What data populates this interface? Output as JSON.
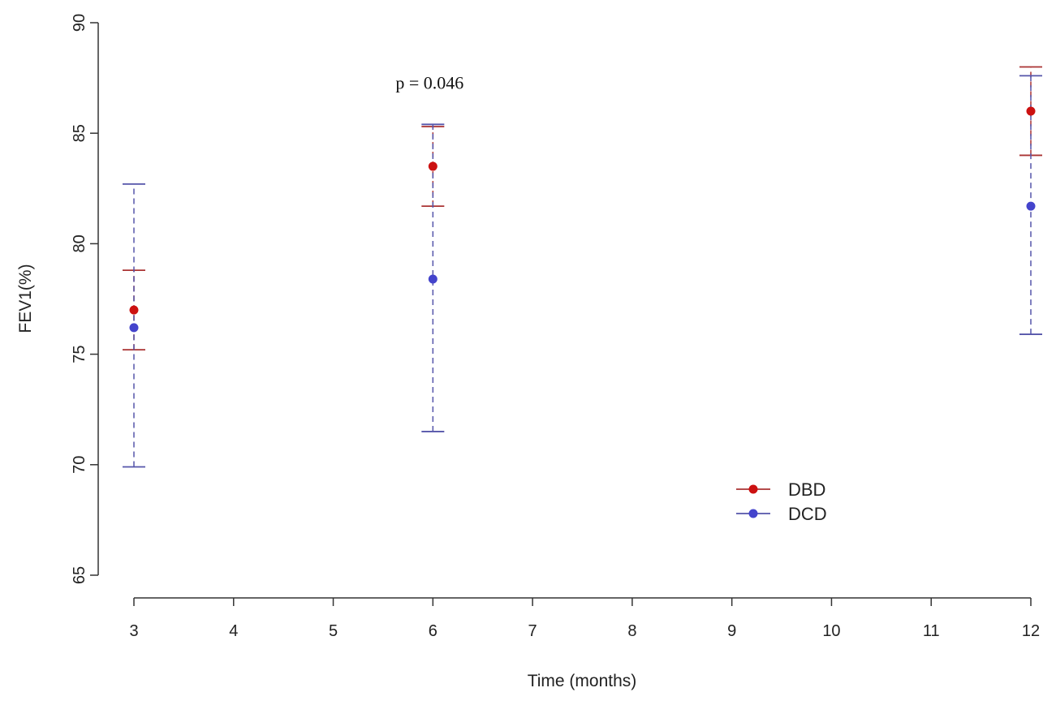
{
  "chart_data": {
    "type": "scatter",
    "xlabel": "Time (months)",
    "ylabel": "FEV1(%)",
    "xlim": [
      3,
      12
    ],
    "ylim": [
      65,
      90
    ],
    "x_ticks": [
      3,
      4,
      5,
      6,
      7,
      8,
      9,
      10,
      11,
      12
    ],
    "y_ticks": [
      65,
      70,
      75,
      80,
      85,
      90
    ],
    "grid": false,
    "legend_position": "lower-right",
    "annotation": {
      "text": "p = 0.046",
      "x": 6,
      "y": 87.3
    },
    "series": [
      {
        "name": "DBD",
        "color": "#cc1111",
        "errbar_color": "#aa3333",
        "points": [
          {
            "x": 3,
            "y": 77.0,
            "lower": 75.2,
            "upper": 78.8
          },
          {
            "x": 6,
            "y": 83.5,
            "lower": 81.7,
            "upper": 85.3
          },
          {
            "x": 12,
            "y": 86.0,
            "lower": 84.0,
            "upper": 88.0
          }
        ]
      },
      {
        "name": "DCD",
        "color": "#4444cc",
        "errbar_color": "#5555aa",
        "points": [
          {
            "x": 3,
            "y": 76.2,
            "lower": 69.9,
            "upper": 82.7
          },
          {
            "x": 6,
            "y": 78.4,
            "lower": 71.5,
            "upper": 85.4
          },
          {
            "x": 12,
            "y": 81.7,
            "lower": 75.9,
            "upper": 87.6
          }
        ]
      }
    ]
  }
}
